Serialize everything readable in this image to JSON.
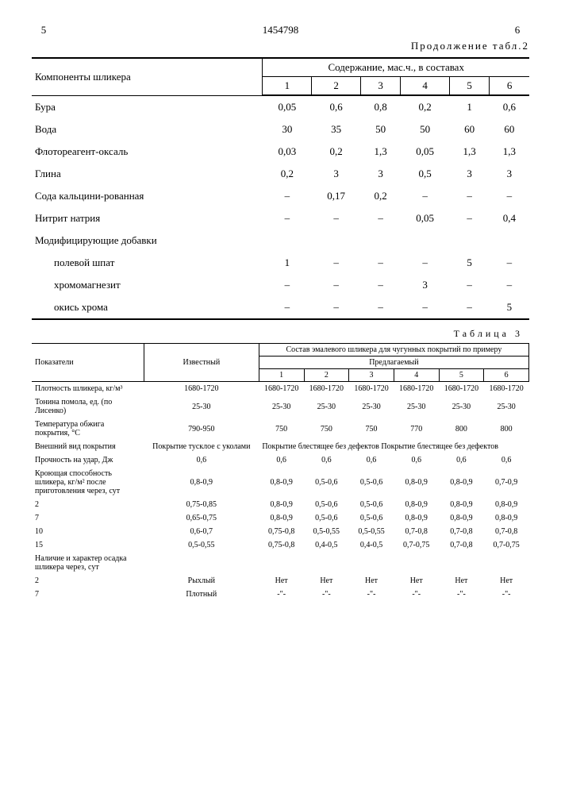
{
  "header": {
    "page_left": "5",
    "doc_number": "1454798",
    "page_right": "6",
    "continuation": "Продолжение табл.2"
  },
  "table2": {
    "components_header": "Компоненты шликера",
    "content_header": "Содержание, мас.ч., в составах",
    "cols": [
      "1",
      "2",
      "3",
      "4",
      "5",
      "6"
    ],
    "rows": [
      {
        "label": "Бура",
        "v": [
          "0,05",
          "0,6",
          "0,8",
          "0,2",
          "1",
          "0,6"
        ]
      },
      {
        "label": "Вода",
        "v": [
          "30",
          "35",
          "50",
          "50",
          "60",
          "60"
        ]
      },
      {
        "label": "Флотореагент-оксаль",
        "v": [
          "0,03",
          "0,2",
          "1,3",
          "0,05",
          "1,3",
          "1,3"
        ]
      },
      {
        "label": "Глина",
        "v": [
          "0,2",
          "3",
          "3",
          "0,5",
          "3",
          "3"
        ]
      },
      {
        "label": "Сода кальцини-рованная",
        "v": [
          "–",
          "0,17",
          "0,2",
          "–",
          "–",
          "–"
        ]
      },
      {
        "label": "Нитрит натрия",
        "v": [
          "–",
          "–",
          "–",
          "0,05",
          "–",
          "0,4"
        ]
      },
      {
        "label": "Модифицирующие добавки",
        "v": [
          "",
          "",
          "",
          "",
          "",
          ""
        ]
      },
      {
        "label": "полевой шпат",
        "indent": true,
        "v": [
          "1",
          "–",
          "–",
          "–",
          "5",
          "–"
        ]
      },
      {
        "label": "хромомагнезит",
        "indent": true,
        "v": [
          "–",
          "–",
          "–",
          "3",
          "–",
          "–"
        ]
      },
      {
        "label": "окись хрома",
        "indent": true,
        "v": [
          "–",
          "–",
          "–",
          "–",
          "–",
          "5"
        ]
      }
    ]
  },
  "table3_label": "Таблица 3",
  "table3": {
    "indicators_header": "Показатели",
    "known_header": "Известный",
    "composition_header": "Состав эмалевого шликера для чугунных покрытий по примеру",
    "proposed_header": "Предлагаемый",
    "cols": [
      "1",
      "2",
      "3",
      "4",
      "5",
      "6"
    ],
    "rows": [
      {
        "label": "Плотность шликера, кг/м³",
        "known": "1680-1720",
        "v": [
          "1680-1720",
          "1680-1720",
          "1680-1720",
          "1680-1720",
          "1680-1720",
          "1680-1720"
        ]
      },
      {
        "label": "Тонина помола, ед. (по Лисенко)",
        "known": "25-30",
        "v": [
          "25-30",
          "25-30",
          "25-30",
          "25-30",
          "25-30",
          "25-30"
        ]
      },
      {
        "label": "Температура обжига покрытия, °С",
        "known": "790-950",
        "v": [
          "750",
          "750",
          "750",
          "770",
          "800",
          "800"
        ]
      },
      {
        "label": "Внешний вид покрытия",
        "known": "Покрытие тусклое с уколами",
        "span": "Покрытие блестящее без дефектов Покрытие блестящее без дефектов"
      },
      {
        "label": "Прочность на удар, Дж",
        "known": "0,6",
        "v": [
          "0,6",
          "0,6",
          "0,6",
          "0,6",
          "0,6",
          "0,6"
        ]
      },
      {
        "label": "Кроющая способность шликера, кг/м² после приготовления через, сут",
        "known": "0,8-0,9",
        "v": [
          "0,8-0,9",
          "0,5-0,6",
          "0,5-0,6",
          "0,8-0,9",
          "0,8-0,9",
          "0,7-0,9"
        ]
      },
      {
        "label": "2",
        "known": "0,75-0,85",
        "v": [
          "0,8-0,9",
          "0,5-0,6",
          "0,5-0,6",
          "0,8-0,9",
          "0,8-0,9",
          "0,8-0,9"
        ]
      },
      {
        "label": "7",
        "known": "0,65-0,75",
        "v": [
          "0,8-0,9",
          "0,5-0,6",
          "0,5-0,6",
          "0,8-0,9",
          "0,8-0,9",
          "0,8-0,9"
        ]
      },
      {
        "label": "10",
        "known": "0,6-0,7",
        "v": [
          "0,75-0,8",
          "0,5-0,55",
          "0,5-0,55",
          "0,7-0,8",
          "0,7-0,8",
          "0,7-0,8"
        ]
      },
      {
        "label": "15",
        "known": "0,5-0,55",
        "v": [
          "0,75-0,8",
          "0,4-0,5",
          "0,4-0,5",
          "0,7-0,75",
          "0,7-0,8",
          "0,7-0,75"
        ]
      },
      {
        "label": "Наличие и характер осадка шликера через, сут",
        "known": "",
        "v": [
          "",
          "",
          "",
          "",
          "",
          ""
        ]
      },
      {
        "label": "2",
        "known": "Рыхлый",
        "v": [
          "Нет",
          "Нет",
          "Нет",
          "Нет",
          "Нет",
          "Нет"
        ]
      },
      {
        "label": "7",
        "known": "Плотный",
        "v": [
          "-\"-",
          "-\"-",
          "-\"-",
          "-\"-",
          "-\"-",
          "-\"-"
        ]
      }
    ]
  }
}
